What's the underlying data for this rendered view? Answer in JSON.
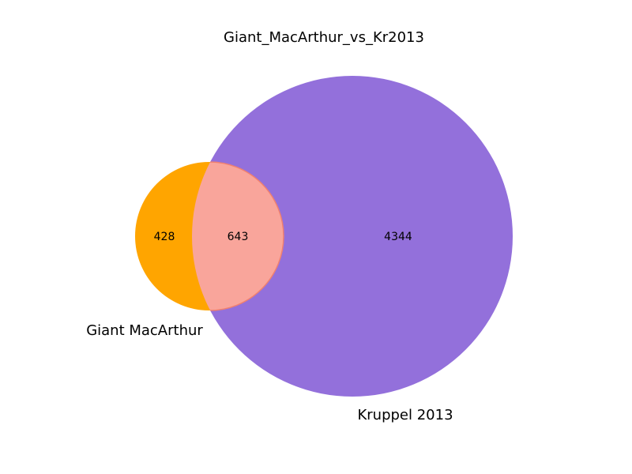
{
  "chart_data": {
    "type": "venn",
    "title": "Giant_MacArthur_vs_Kr2013",
    "sets": [
      {
        "name": "Giant MacArthur",
        "only": 428,
        "color": "#ffa500"
      },
      {
        "name": "Kruppel 2013",
        "only": 4344,
        "color": "#9370db"
      }
    ],
    "intersection": {
      "value": 643,
      "color": "#f9a59b",
      "edge_color": "#f08070"
    }
  }
}
